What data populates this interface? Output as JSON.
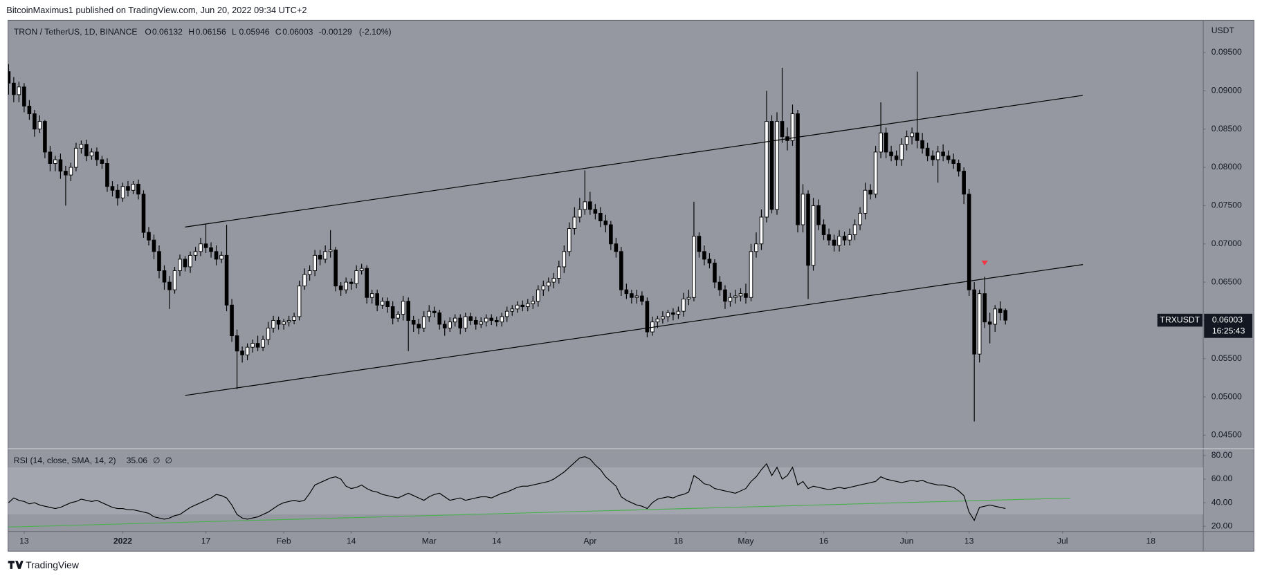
{
  "publisher_line": "BitcoinMaximus1 published on TradingView.com, Jun 20, 2022 09:34 UTC+2",
  "footer_brand": "TradingView",
  "chart_data": {
    "type": "candlestick",
    "title": "TRON / TetherUS, 1D, BINANCE",
    "y_axis_label": "USDT",
    "symbol": "TRXUSDT",
    "countdown": "16:25:43",
    "legend_keys": [
      "O",
      "H",
      "L",
      "C"
    ],
    "change": -0.00129,
    "change_pct": {
      "value": -2.1,
      "label": "(-2.10%)"
    },
    "up_color": "#ffffff",
    "down_color": "#000000",
    "grid": false,
    "open": [
      0.0925,
      0.091,
      0.0895,
      0.0905,
      0.088,
      0.087,
      0.085,
      0.086,
      0.082,
      0.0805,
      0.081,
      0.0795,
      0.079,
      0.08,
      0.0825,
      0.083,
      0.0815,
      0.082,
      0.081,
      0.0805,
      0.0775,
      0.077,
      0.076,
      0.0775,
      0.077,
      0.0778,
      0.0765,
      0.0715,
      0.0705,
      0.069,
      0.0665,
      0.065,
      0.064,
      0.0665,
      0.068,
      0.067,
      0.0685,
      0.069,
      0.07,
      0.0695,
      0.069,
      0.068,
      0.0685,
      0.062,
      0.058,
      0.056,
      0.0555,
      0.0565,
      0.057,
      0.0565,
      0.0575,
      0.059,
      0.06,
      0.0595,
      0.0598,
      0.06,
      0.0605,
      0.0645,
      0.066,
      0.0665,
      0.0685,
      0.068,
      0.069,
      0.0692,
      0.0645,
      0.064,
      0.065,
      0.0648,
      0.0665,
      0.0668,
      0.063,
      0.0635,
      0.062,
      0.0625,
      0.0618,
      0.0603,
      0.0608,
      0.0625,
      0.06,
      0.0595,
      0.059,
      0.0605,
      0.0612,
      0.061,
      0.0595,
      0.059,
      0.0598,
      0.0603,
      0.059,
      0.0605,
      0.06,
      0.0595,
      0.0598,
      0.0603,
      0.06,
      0.0598,
      0.0605,
      0.0612,
      0.0615,
      0.062,
      0.0618,
      0.0622,
      0.0625,
      0.064,
      0.0645,
      0.065,
      0.0655,
      0.067,
      0.069,
      0.072,
      0.0735,
      0.0745,
      0.0755,
      0.0745,
      0.074,
      0.073,
      0.0725,
      0.07,
      0.069,
      0.064,
      0.0635,
      0.063,
      0.0632,
      0.0625,
      0.0585,
      0.0598,
      0.0602,
      0.0605,
      0.061,
      0.0608,
      0.0612,
      0.0628,
      0.063,
      0.071,
      0.069,
      0.068,
      0.0675,
      0.065,
      0.064,
      0.0625,
      0.063,
      0.0632,
      0.0635,
      0.063,
      0.069,
      0.07,
      0.0735,
      0.086,
      0.0745,
      0.086,
      0.084,
      0.0835,
      0.087,
      0.0725,
      0.0765,
      0.0672,
      0.075,
      0.0725,
      0.0712,
      0.0705,
      0.0698,
      0.071,
      0.0705,
      0.0712,
      0.0725,
      0.074,
      0.077,
      0.0765,
      0.082,
      0.0845,
      0.082,
      0.0815,
      0.081,
      0.083,
      0.084,
      0.0845,
      0.0835,
      0.0825,
      0.0815,
      0.081,
      0.082,
      0.0815,
      0.081,
      0.0805,
      0.0795,
      0.0765,
      0.064,
      0.0556,
      0.0635,
      0.0598,
      0.0595,
      0.0615,
      0.06132
    ],
    "high": [
      0.0935,
      0.0918,
      0.0912,
      0.091,
      0.0888,
      0.0875,
      0.0868,
      0.0862,
      0.0828,
      0.0815,
      0.0818,
      0.0802,
      0.0806,
      0.0832,
      0.0835,
      0.0836,
      0.0825,
      0.0826,
      0.0815,
      0.0812,
      0.0782,
      0.0778,
      0.078,
      0.0782,
      0.0782,
      0.0784,
      0.077,
      0.0722,
      0.0712,
      0.0698,
      0.0672,
      0.0658,
      0.067,
      0.0686,
      0.0684,
      0.069,
      0.0696,
      0.0708,
      0.0726,
      0.0702,
      0.0698,
      0.069,
      0.0725,
      0.0628,
      0.0588,
      0.0566,
      0.057,
      0.0575,
      0.058,
      0.058,
      0.0598,
      0.0606,
      0.0605,
      0.0602,
      0.0606,
      0.061,
      0.0652,
      0.0668,
      0.0672,
      0.0692,
      0.0692,
      0.0698,
      0.0718,
      0.0696,
      0.065,
      0.0656,
      0.0655,
      0.0672,
      0.0674,
      0.0672,
      0.064,
      0.064,
      0.063,
      0.063,
      0.0625,
      0.0612,
      0.0632,
      0.063,
      0.0606,
      0.0602,
      0.0612,
      0.062,
      0.0618,
      0.0614,
      0.06,
      0.0604,
      0.0608,
      0.0608,
      0.061,
      0.061,
      0.0605,
      0.0604,
      0.0608,
      0.0608,
      0.0605,
      0.061,
      0.0618,
      0.062,
      0.0625,
      0.0626,
      0.0628,
      0.0632,
      0.0646,
      0.0652,
      0.0656,
      0.0662,
      0.0678,
      0.0698,
      0.0728,
      0.0748,
      0.076,
      0.0796,
      0.0768,
      0.0752,
      0.0748,
      0.0738,
      0.073,
      0.0708,
      0.0696,
      0.0648,
      0.064,
      0.064,
      0.0638,
      0.063,
      0.0605,
      0.0606,
      0.0612,
      0.0614,
      0.0616,
      0.0618,
      0.0636,
      0.064,
      0.0755,
      0.0715,
      0.0698,
      0.0688,
      0.068,
      0.0658,
      0.0646,
      0.0636,
      0.064,
      0.0642,
      0.0648,
      0.07,
      0.0715,
      0.0745,
      0.09,
      0.0868,
      0.0872,
      0.093,
      0.0852,
      0.0882,
      0.0875,
      0.0778,
      0.077,
      0.076,
      0.0758,
      0.0732,
      0.072,
      0.0712,
      0.0718,
      0.0716,
      0.072,
      0.0732,
      0.0748,
      0.078,
      0.0778,
      0.0828,
      0.0885,
      0.0852,
      0.0828,
      0.0822,
      0.0838,
      0.0848,
      0.0852,
      0.0925,
      0.0845,
      0.0832,
      0.0822,
      0.0828,
      0.083,
      0.0822,
      0.0818,
      0.081,
      0.08,
      0.0772,
      0.065,
      0.064,
      0.0657,
      0.061,
      0.062,
      0.0625,
      0.06156
    ],
    "low": [
      0.0895,
      0.0885,
      0.0885,
      0.0872,
      0.0862,
      0.084,
      0.0845,
      0.0812,
      0.0795,
      0.0795,
      0.0785,
      0.075,
      0.0782,
      0.0795,
      0.0818,
      0.0808,
      0.081,
      0.0802,
      0.0798,
      0.0768,
      0.0762,
      0.075,
      0.0755,
      0.0762,
      0.0765,
      0.0758,
      0.0708,
      0.0698,
      0.068,
      0.0655,
      0.064,
      0.0615,
      0.0635,
      0.0658,
      0.0664,
      0.0662,
      0.0678,
      0.0684,
      0.0688,
      0.0682,
      0.0672,
      0.0675,
      0.0612,
      0.0572,
      0.051,
      0.0545,
      0.0548,
      0.0558,
      0.056,
      0.056,
      0.0568,
      0.0584,
      0.0588,
      0.0588,
      0.0592,
      0.0595,
      0.06,
      0.064,
      0.0652,
      0.0658,
      0.0672,
      0.0675,
      0.0682,
      0.0638,
      0.0632,
      0.0635,
      0.064,
      0.0642,
      0.066,
      0.0622,
      0.0622,
      0.0612,
      0.0615,
      0.061,
      0.0595,
      0.0598,
      0.06,
      0.056,
      0.0585,
      0.0582,
      0.0585,
      0.0598,
      0.0604,
      0.0588,
      0.058,
      0.0585,
      0.0592,
      0.0582,
      0.0585,
      0.0594,
      0.0588,
      0.059,
      0.0592,
      0.0594,
      0.0592,
      0.0592,
      0.0598,
      0.0606,
      0.061,
      0.0612,
      0.0612,
      0.0615,
      0.0618,
      0.0632,
      0.0638,
      0.0642,
      0.0648,
      0.0662,
      0.0684,
      0.0712,
      0.0728,
      0.0738,
      0.0738,
      0.0732,
      0.0722,
      0.0715,
      0.0692,
      0.0682,
      0.0632,
      0.0628,
      0.0622,
      0.0622,
      0.062,
      0.0578,
      0.058,
      0.059,
      0.0596,
      0.0598,
      0.06,
      0.0602,
      0.0605,
      0.062,
      0.0625,
      0.0682,
      0.0672,
      0.0668,
      0.0642,
      0.0632,
      0.0615,
      0.0618,
      0.0622,
      0.0625,
      0.0622,
      0.0625,
      0.0682,
      0.0692,
      0.0728,
      0.074,
      0.0738,
      0.0832,
      0.0822,
      0.0828,
      0.0715,
      0.0715,
      0.0628,
      0.0665,
      0.0718,
      0.0705,
      0.0698,
      0.069,
      0.069,
      0.0698,
      0.0698,
      0.0705,
      0.0718,
      0.0732,
      0.0758,
      0.076,
      0.0812,
      0.0812,
      0.0808,
      0.0802,
      0.0802,
      0.0822,
      0.083,
      0.0825,
      0.0818,
      0.0808,
      0.0802,
      0.078,
      0.0808,
      0.0805,
      0.0798,
      0.0788,
      0.0752,
      0.0632,
      0.0468,
      0.0545,
      0.059,
      0.057,
      0.0585,
      0.06,
      0.05946
    ],
    "close": [
      0.091,
      0.0895,
      0.0905,
      0.088,
      0.087,
      0.085,
      0.086,
      0.082,
      0.0805,
      0.081,
      0.0795,
      0.079,
      0.08,
      0.0825,
      0.083,
      0.0815,
      0.082,
      0.081,
      0.0805,
      0.0775,
      0.077,
      0.076,
      0.0775,
      0.077,
      0.0778,
      0.0765,
      0.0715,
      0.0705,
      0.069,
      0.0665,
      0.065,
      0.064,
      0.0665,
      0.068,
      0.067,
      0.0685,
      0.069,
      0.07,
      0.0695,
      0.069,
      0.068,
      0.0685,
      0.062,
      0.058,
      0.056,
      0.0555,
      0.0565,
      0.057,
      0.0565,
      0.0575,
      0.059,
      0.06,
      0.0595,
      0.0598,
      0.06,
      0.0605,
      0.0645,
      0.066,
      0.0665,
      0.0685,
      0.068,
      0.069,
      0.0692,
      0.0645,
      0.064,
      0.065,
      0.0648,
      0.0665,
      0.0668,
      0.063,
      0.0635,
      0.062,
      0.0625,
      0.0618,
      0.0603,
      0.0608,
      0.0625,
      0.06,
      0.0595,
      0.059,
      0.0605,
      0.0612,
      0.061,
      0.0595,
      0.059,
      0.0598,
      0.0603,
      0.059,
      0.0605,
      0.06,
      0.0595,
      0.0598,
      0.0603,
      0.06,
      0.0598,
      0.0605,
      0.0612,
      0.0615,
      0.062,
      0.0618,
      0.0622,
      0.0625,
      0.064,
      0.0645,
      0.065,
      0.0655,
      0.067,
      0.069,
      0.072,
      0.0735,
      0.0745,
      0.0755,
      0.0745,
      0.074,
      0.073,
      0.0725,
      0.07,
      0.069,
      0.064,
      0.0635,
      0.063,
      0.0632,
      0.0625,
      0.0585,
      0.0598,
      0.0602,
      0.0605,
      0.061,
      0.0608,
      0.0612,
      0.0628,
      0.063,
      0.071,
      0.069,
      0.068,
      0.0675,
      0.065,
      0.064,
      0.0625,
      0.063,
      0.0632,
      0.0635,
      0.063,
      0.069,
      0.07,
      0.0735,
      0.086,
      0.0745,
      0.086,
      0.084,
      0.0835,
      0.087,
      0.0725,
      0.0765,
      0.0672,
      0.075,
      0.0725,
      0.0712,
      0.0705,
      0.0698,
      0.071,
      0.0705,
      0.0712,
      0.0725,
      0.074,
      0.077,
      0.0765,
      0.082,
      0.0845,
      0.082,
      0.0815,
      0.081,
      0.083,
      0.084,
      0.0845,
      0.0835,
      0.0825,
      0.0815,
      0.081,
      0.082,
      0.0815,
      0.081,
      0.0805,
      0.0795,
      0.0765,
      0.064,
      0.0556,
      0.0635,
      0.0598,
      0.0595,
      0.0615,
      0.061,
      0.06003
    ],
    "xlim": [
      -0.1,
      230.1
    ],
    "xticks": [
      {
        "value": 3,
        "label": "13"
      },
      {
        "value": 22,
        "label": "2022"
      },
      {
        "value": 38,
        "label": "17"
      },
      {
        "value": 53,
        "label": "Feb"
      },
      {
        "value": 66,
        "label": "14"
      },
      {
        "value": 81,
        "label": "Mar"
      },
      {
        "value": 94,
        "label": "14"
      },
      {
        "value": 112,
        "label": "Apr"
      },
      {
        "value": 129,
        "label": "18"
      },
      {
        "value": 142,
        "label": "May"
      },
      {
        "value": 157,
        "label": "16"
      },
      {
        "value": 173,
        "label": "Jun"
      },
      {
        "value": 185,
        "label": "13"
      },
      {
        "value": 203,
        "label": "Jul"
      },
      {
        "value": 220,
        "label": "18"
      }
    ],
    "ylim": [
      0.0433,
      0.0992
    ],
    "yticks": [
      {
        "value": 0.095,
        "label": "0.09500"
      },
      {
        "value": 0.09,
        "label": "0.09000"
      },
      {
        "value": 0.085,
        "label": "0.08500"
      },
      {
        "value": 0.08,
        "label": "0.08000"
      },
      {
        "value": 0.075,
        "label": "0.07500"
      },
      {
        "value": 0.07,
        "label": "0.07000"
      },
      {
        "value": 0.065,
        "label": "0.06500"
      },
      {
        "value": 0.06,
        "label": "0.06000"
      },
      {
        "value": 0.055,
        "label": "0.05500"
      },
      {
        "value": 0.05,
        "label": "0.05000"
      },
      {
        "value": 0.045,
        "label": "0.04500"
      }
    ],
    "channel": [
      {
        "color": "#000000",
        "from": [
          34,
          0.0722
        ],
        "to": [
          206.9,
          0.0894
        ]
      },
      {
        "color": "#000000",
        "from": [
          34,
          0.0502
        ],
        "to": [
          206.9,
          0.0673
        ]
      }
    ],
    "markers": [
      {
        "x": 188,
        "y": 0.0675,
        "color": "#f23645"
      }
    ],
    "rsi": {
      "label": "RSI (14, close, SMA, 14, 2)",
      "na_values": [
        "∅",
        "∅"
      ],
      "color": "#000000",
      "values": [
        40,
        44,
        42,
        41,
        39,
        40,
        38,
        37,
        36,
        35,
        36,
        38,
        40,
        41,
        43,
        42,
        41,
        42,
        40,
        38,
        36,
        35,
        35,
        34,
        34,
        33,
        32,
        31,
        28,
        27,
        26,
        27,
        29,
        30,
        33,
        36,
        38,
        40,
        42,
        44,
        47,
        46,
        44,
        38,
        30,
        27,
        26,
        27,
        28,
        30,
        32,
        35,
        38,
        40,
        41,
        42,
        41,
        42,
        48,
        55,
        57,
        59,
        61,
        62,
        60,
        54,
        52,
        53,
        55,
        52,
        50,
        49,
        47,
        46,
        45,
        44,
        46,
        48,
        46,
        44,
        42,
        45,
        47,
        48,
        45,
        42,
        43,
        44,
        42,
        43,
        44,
        45,
        45,
        44,
        46,
        48,
        49,
        51,
        53,
        54,
        54,
        55,
        56,
        57,
        58,
        60,
        63,
        66,
        70,
        74,
        78,
        79,
        77,
        72,
        68,
        62,
        58,
        54,
        45,
        42,
        40,
        38,
        37,
        35,
        40,
        43,
        44,
        45,
        44,
        46,
        47,
        49,
        63,
        60,
        56,
        55,
        52,
        51,
        50,
        49,
        48,
        50,
        52,
        58,
        62,
        68,
        73,
        63,
        70,
        60,
        63,
        70,
        55,
        58,
        52,
        54,
        53,
        52,
        51,
        52,
        53,
        52,
        53,
        54,
        55,
        56,
        57,
        58,
        62,
        60,
        59,
        58,
        57,
        58,
        59,
        58,
        59,
        57,
        56,
        55,
        55,
        54,
        53,
        50,
        46,
        32,
        25,
        36,
        37,
        38,
        37,
        36,
        35.06
      ],
      "ylim": [
        15.9,
        85.5
      ],
      "yticks": [
        {
          "value": 80,
          "label": "80.00"
        },
        {
          "value": 60,
          "label": "60.00"
        },
        {
          "value": 40,
          "label": "40.00"
        },
        {
          "value": 20,
          "label": "20.00"
        }
      ],
      "band": [
        30,
        70
      ],
      "trendline": {
        "color": "#4caf50",
        "from": [
          -0.1,
          19.3
        ],
        "to": [
          204.5,
          43.9
        ]
      }
    }
  }
}
